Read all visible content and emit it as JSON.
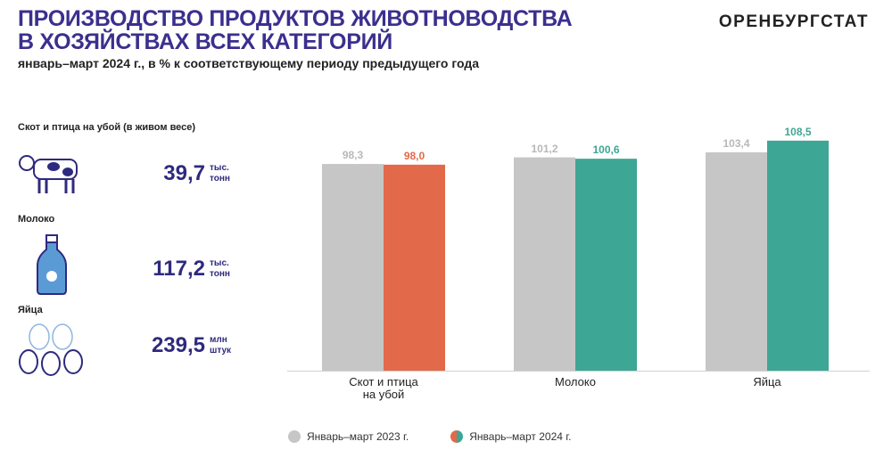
{
  "header": {
    "title": "ПРОИЗВОДСТВО ПРОДУКТОВ ЖИВОТНОВОДСТВА\nВ ХОЗЯЙСТВАХ ВСЕХ КАТЕГОРИЙ",
    "subtitle": "январь–март 2024 г., в % к соответствующему периоду предыдущего года",
    "brand": "ОРЕНБУРГСТАТ"
  },
  "stats": [
    {
      "label": "Скот и птица на убой (в живом весе)",
      "value": "39,7",
      "unit": "тыс.\nтонн"
    },
    {
      "label": "Молоко",
      "value": "117,2",
      "unit": "тыс.\nтонн"
    },
    {
      "label": "Яйца",
      "value": "239,5",
      "unit": "млн\nштук"
    }
  ],
  "chart_data": {
    "type": "bar",
    "categories": [
      "Скот и птица\nна убой",
      "Молоко",
      "Яйца"
    ],
    "series": [
      {
        "name": "Январь–март 2023 г.",
        "color": "#c6c6c6",
        "label_color": "#b8b8b8",
        "values": [
          98.3,
          101.2,
          103.4
        ],
        "value_labels": [
          "98,3",
          "101,2",
          "103,4"
        ]
      },
      {
        "name": "Январь–март 2024 г.",
        "colors": [
          "#e2694a",
          "#3ea694",
          "#3ea694"
        ],
        "values": [
          98.0,
          100.6,
          108.5
        ],
        "value_labels": [
          "98,0",
          "100,6",
          "108,5"
        ]
      }
    ],
    "ylim": [
      8,
      110
    ],
    "grid": false
  }
}
